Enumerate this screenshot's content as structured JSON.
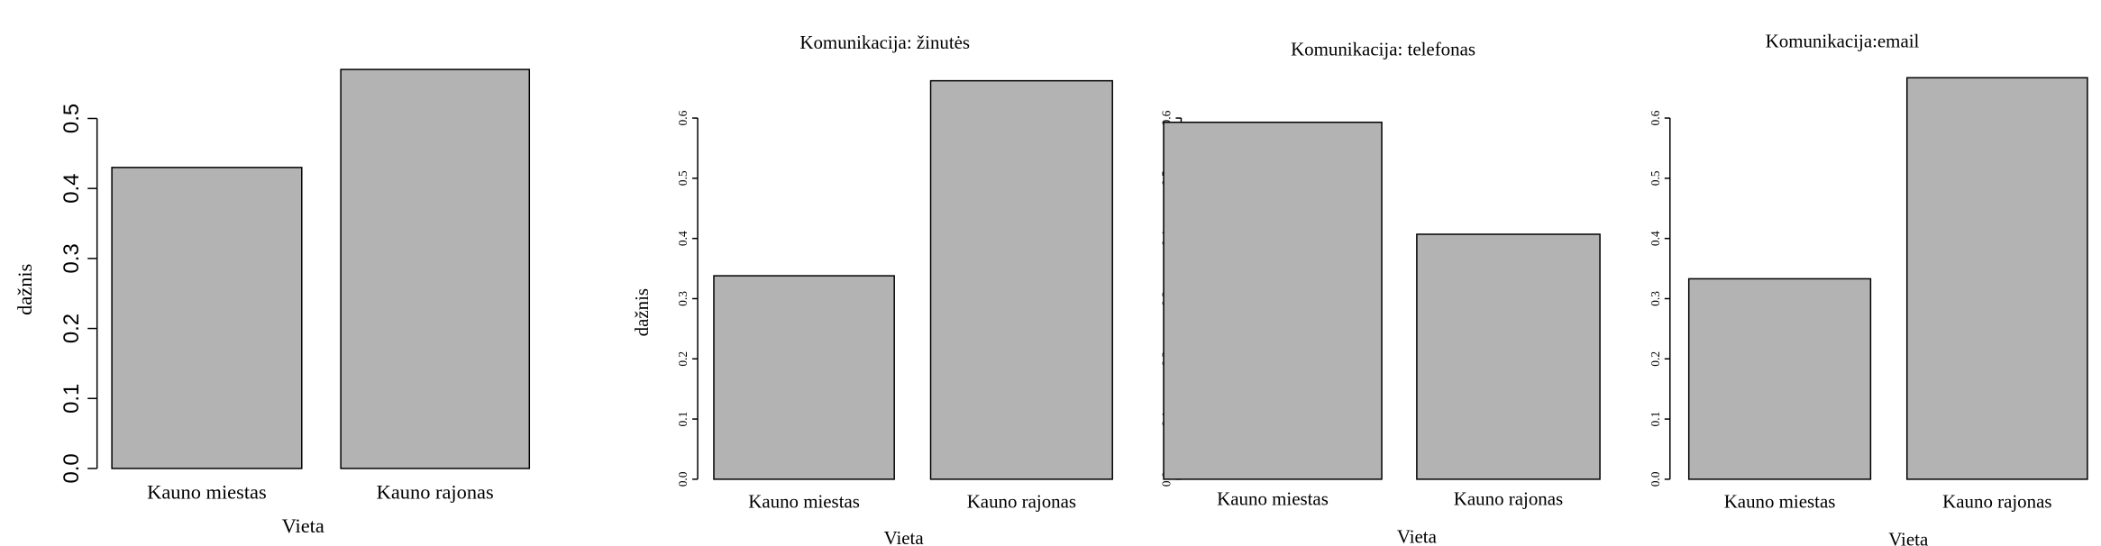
{
  "chart_data": [
    {
      "type": "bar",
      "ylabel": "dažnis",
      "xlabel": "Vieta",
      "categories": [
        "Kauno miestas",
        "Kauno rajonas"
      ],
      "values": [
        0.43,
        0.57
      ],
      "color": "#b3b3b3",
      "ylim": [
        0,
        0.6
      ],
      "yticks": [
        {
          "value": 0,
          "label": "0.0"
        },
        0.1,
        0.2,
        0.3,
        0.4,
        0.5
      ]
    },
    {
      "type": "bar",
      "title": "Komunikacija: žinutės",
      "ylabel": "dažnis",
      "xlabel": "Vieta",
      "categories": [
        "Kauno miestas",
        "Kauno rajonas"
      ],
      "values": [
        0.338,
        0.662
      ],
      "color": "#b3b3b3",
      "ylim": [
        0,
        0.7
      ],
      "yticks": [
        {
          "value": 0,
          "label": "0.0"
        },
        0.1,
        0.2,
        0.3,
        0.4,
        0.5,
        0.6
      ]
    },
    {
      "type": "bar",
      "title": "Komunikacija: telefonas",
      "xlabel": "Vieta",
      "categories": [
        "Kauno miestas",
        "Kauno rajonas"
      ],
      "values": [
        0.593,
        0.407
      ],
      "color": "#b3b3b3",
      "ylim": [
        0,
        0.7
      ],
      "yticks": [
        {
          "value": 0,
          "label": "0.0"
        },
        0.1,
        0.2,
        0.3,
        0.4,
        0.5,
        0.6
      ]
    },
    {
      "type": "bar",
      "title": "Komunikacija:email",
      "xlabel": "Vieta",
      "categories": [
        "Kauno miestas",
        "Kauno rajonas"
      ],
      "values": [
        0.333,
        0.667
      ],
      "color": "#b3b3b3",
      "ylim": [
        0,
        0.7
      ],
      "yticks": [
        {
          "value": 0,
          "label": "0.0"
        },
        0.1,
        0.2,
        0.3,
        0.4,
        0.5,
        0.6
      ]
    }
  ]
}
